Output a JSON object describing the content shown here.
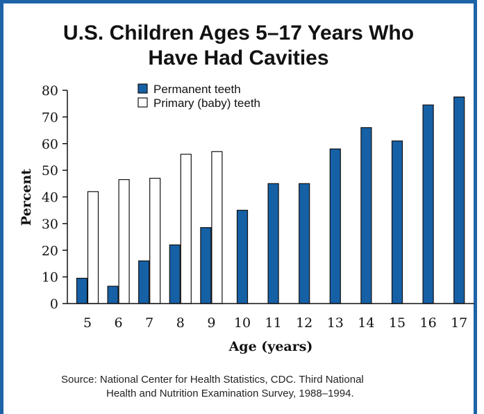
{
  "title": {
    "line1": "U.S. Children Ages 5–17 Years Who",
    "line2": "Have Had Cavities"
  },
  "source": {
    "line1": "Source:  National Center for Health Statistics, CDC. Third National",
    "line2": "Health and Nutrition Examination Survey, 1988–1994."
  },
  "colors": {
    "frame": "#1e63a8",
    "permanent": "#1660a6",
    "primary": "#ffffff"
  },
  "chart_data": {
    "type": "bar",
    "xlabel": "Age (years)",
    "ylabel": "Percent",
    "ylim": [
      0,
      80
    ],
    "yticks": [
      0,
      10,
      20,
      30,
      40,
      50,
      60,
      70,
      80
    ],
    "legend_position": "top-left",
    "grid": false,
    "categories": [
      "5",
      "6",
      "7",
      "8",
      "9",
      "10",
      "11",
      "12",
      "13",
      "14",
      "15",
      "16",
      "17"
    ],
    "series": [
      {
        "name": "Permanent teeth",
        "values": [
          9.5,
          6.5,
          16,
          22,
          28.5,
          35,
          45,
          45,
          58,
          66,
          61,
          74.5,
          77.5
        ]
      },
      {
        "name": "Primary (baby) teeth",
        "values": [
          42,
          46.5,
          47,
          56,
          57,
          null,
          null,
          null,
          null,
          null,
          null,
          null,
          null
        ]
      }
    ]
  }
}
